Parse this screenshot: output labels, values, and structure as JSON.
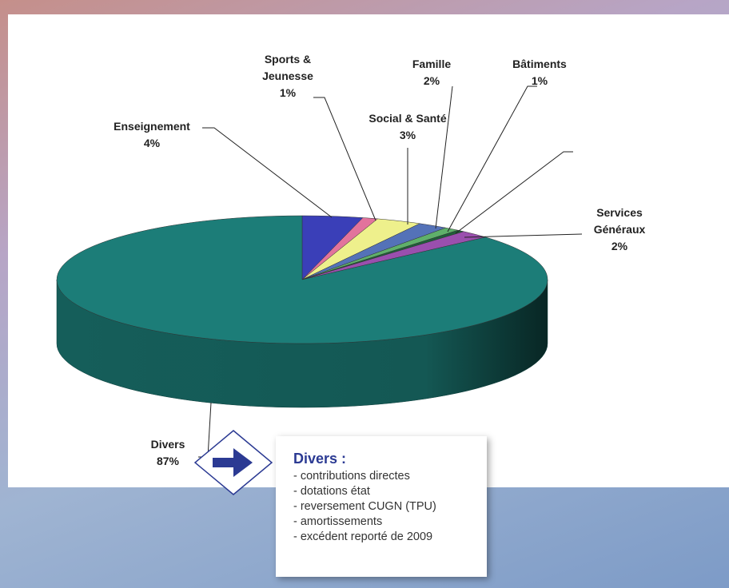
{
  "chart_data": {
    "type": "pie",
    "categories": [
      "Enseignement",
      "Sports & Jeunesse",
      "Social & Santé",
      "Famille",
      "Bâtiments",
      null,
      "Services Généraux",
      "Divers"
    ],
    "values": [
      4,
      1,
      3,
      2,
      1,
      0.5,
      2,
      87
    ],
    "value_labels": [
      "4%",
      "1%",
      "3%",
      "2%",
      "1%",
      null,
      "2%",
      "87%"
    ],
    "colors": [
      "#3a3fb8",
      "#e2739c",
      "#eef08c",
      "#5472b8",
      "#5fb06a",
      "#1f5e3a",
      "#9a4fae",
      "#1c7d78"
    ]
  },
  "callout": {
    "title": "Divers :",
    "items": [
      "- contributions directes",
      "- dotations état",
      "- reversement CUGN (TPU)",
      "- amortissements",
      "- excédent reporté de 2009"
    ]
  }
}
